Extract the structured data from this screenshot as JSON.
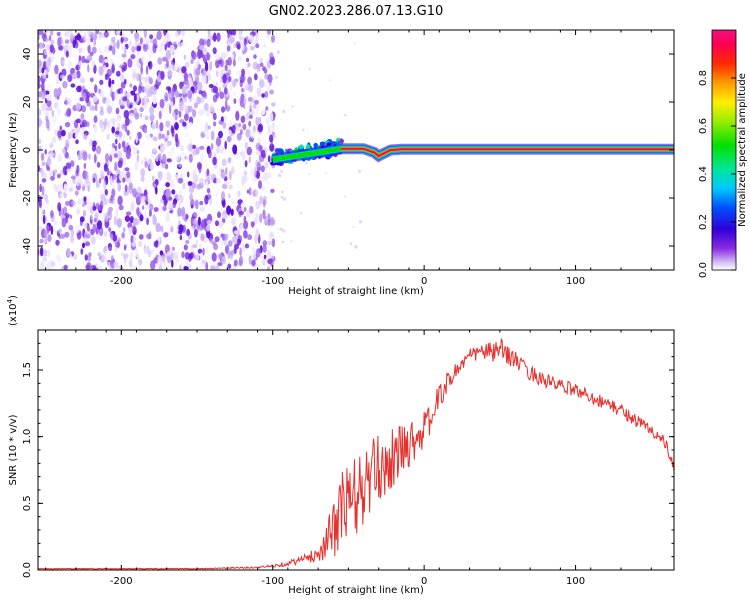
{
  "figure_title": "GN02.2023.286.07.13.G10",
  "chart_data": [
    {
      "type": "heatmap",
      "title": "",
      "xlabel": "Height of straight line (km)",
      "ylabel": "Frequency (Hz)",
      "xlim": [
        -255,
        165
      ],
      "ylim": [
        -50,
        50
      ],
      "xticks": [
        -200,
        -100,
        0,
        100
      ],
      "yticks": [
        -40,
        -20,
        0,
        20,
        40
      ],
      "colorbar": {
        "label": "Normalized spectral amplitude",
        "range": [
          0,
          1
        ],
        "ticks": [
          0.0,
          0.2,
          0.4,
          0.6,
          0.8
        ],
        "colormap": "rainbow (white→purple→blue→cyan→green→yellow→red→magenta)"
      },
      "regions": [
        {
          "x": [
            -255,
            -100
          ],
          "y": [
            -50,
            50
          ],
          "amplitude": "0.0-0.2",
          "description": "diffuse noise"
        },
        {
          "x": [
            -100,
            -55
          ],
          "y": [
            -5,
            8
          ],
          "amplitude": "0.2-0.6"
        },
        {
          "x": [
            -55,
            165
          ],
          "y": [
            -2,
            2
          ],
          "amplitude": "0.8-1.0",
          "center_frequency": 0
        }
      ],
      "ridge": {
        "x": [
          -100,
          -90,
          -80,
          -70,
          -60,
          -55,
          -50,
          -40,
          -33,
          -30,
          -27,
          -22,
          -15,
          0,
          50,
          100,
          165
        ],
        "freq": [
          -4,
          -3,
          -2,
          -1,
          0,
          0.5,
          0.5,
          0.5,
          -1,
          -2.5,
          -1.5,
          0,
          0.3,
          0.3,
          0.3,
          0.3,
          0.3
        ]
      }
    },
    {
      "type": "line",
      "title": "",
      "xlabel": "Height of straight line (km)",
      "ylabel": "SNR (10 * v/v)",
      "y_multiplier": "(x10⁴)",
      "y_multiplier_base": "(x10",
      "y_multiplier_exp": "4",
      "y_multiplier_close": ")",
      "xlim": [
        -255,
        165
      ],
      "ylim": [
        0,
        1.8
      ],
      "xticks": [
        -200,
        -100,
        0,
        100
      ],
      "yticks": [
        0.0,
        0.5,
        1.0,
        1.5
      ],
      "ytick_labels": [
        "0.0",
        "0.5",
        "1.0",
        "1.5"
      ],
      "series": [
        {
          "color": "#e8302c",
          "x": [
            -255,
            -200,
            -150,
            -110,
            -100,
            -90,
            -80,
            -70,
            -65,
            -60,
            -55,
            -50,
            -45,
            -40,
            -35,
            -30,
            -25,
            -20,
            -15,
            -10,
            -5,
            0,
            5,
            10,
            15,
            20,
            25,
            30,
            35,
            40,
            45,
            50,
            55,
            60,
            65,
            70,
            80,
            90,
            100,
            110,
            120,
            130,
            140,
            150,
            155,
            160,
            165
          ],
          "y": [
            0.01,
            0.01,
            0.01,
            0.02,
            0.03,
            0.05,
            0.08,
            0.12,
            0.2,
            0.3,
            0.45,
            0.5,
            0.55,
            0.6,
            0.7,
            0.75,
            0.8,
            0.85,
            0.9,
            0.95,
            1.0,
            1.05,
            1.15,
            1.3,
            1.4,
            1.48,
            1.55,
            1.6,
            1.63,
            1.64,
            1.63,
            1.65,
            1.62,
            1.58,
            1.52,
            1.48,
            1.42,
            1.38,
            1.35,
            1.3,
            1.25,
            1.2,
            1.12,
            1.05,
            1.0,
            0.93,
            0.75
          ],
          "noise_amplitude": [
            0.003,
            0.003,
            0.003,
            0.006,
            0.01,
            0.02,
            0.03,
            0.06,
            0.12,
            0.22,
            0.3,
            0.32,
            0.32,
            0.3,
            0.28,
            0.26,
            0.24,
            0.22,
            0.2,
            0.18,
            0.16,
            0.14,
            0.12,
            0.1,
            0.08,
            0.07,
            0.06,
            0.06,
            0.06,
            0.07,
            0.08,
            0.09,
            0.08,
            0.07,
            0.06,
            0.06,
            0.06,
            0.05,
            0.05,
            0.05,
            0.05,
            0.05,
            0.05,
            0.05,
            0.05,
            0.05,
            0.04
          ]
        }
      ]
    }
  ]
}
